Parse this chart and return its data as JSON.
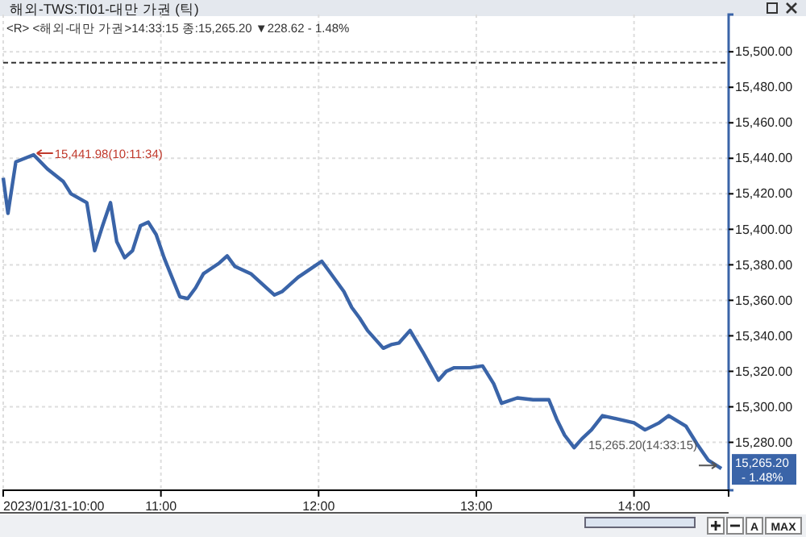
{
  "chart_data": {
    "type": "line",
    "title": "해외-TWS:TI01-대만 가권 (틱)",
    "subtitle": "<R> <해외-대만 가권>14:33:15 종:15,265.20 ▼228.62 - 1.48%",
    "x": [
      10.0,
      10.03,
      10.08,
      10.1928,
      10.28,
      10.38,
      10.43,
      10.53,
      10.58,
      10.63,
      10.68,
      10.72,
      10.77,
      10.82,
      10.87,
      10.92,
      10.97,
      11.02,
      11.07,
      11.12,
      11.17,
      11.22,
      11.27,
      11.37,
      11.42,
      11.47,
      11.57,
      11.67,
      11.72,
      11.77,
      11.87,
      11.97,
      12.02,
      12.07,
      12.16,
      12.21,
      12.26,
      12.31,
      12.36,
      12.41,
      12.46,
      12.51,
      12.58,
      12.66,
      12.71,
      12.76,
      12.81,
      12.86,
      12.96,
      13.04,
      13.11,
      13.16,
      13.26,
      13.36,
      13.46,
      13.51,
      13.56,
      13.62,
      13.67,
      13.73,
      13.8,
      13.9,
      14.0,
      14.07,
      14.16,
      14.22,
      14.33,
      14.4,
      14.47,
      14.554
    ],
    "series": [
      {
        "color": "#3a64a8",
        "values": [
          15429,
          15409,
          15438,
          15441.98,
          15434,
          15427,
          15420,
          15415,
          15388,
          15402,
          15415,
          15393,
          15384,
          15388,
          15402,
          15404,
          15397,
          15384,
          15373,
          15362,
          15361,
          15367,
          15375,
          15381,
          15385,
          15379,
          15375,
          15367,
          15363,
          15365,
          15373,
          15379,
          15382,
          15376,
          15365,
          15356,
          15350,
          15343,
          15338,
          15333,
          15335,
          15336,
          15343,
          15331,
          15323,
          15315,
          15320,
          15322,
          15322,
          15323,
          15313,
          15302,
          15305,
          15304,
          15304,
          15293,
          15284,
          15277,
          15282,
          15287,
          15295,
          15293,
          15291,
          15287,
          15291,
          15295,
          15289,
          15279,
          15270,
          15265.2
        ]
      }
    ],
    "xlim": [
      10,
      14.6
    ],
    "xticks": [
      {
        "value": 10,
        "label": "2023/01/31-10:00"
      },
      {
        "value": 11,
        "label": "11:00"
      },
      {
        "value": 12,
        "label": "12:00"
      },
      {
        "value": 13,
        "label": "13:00"
      },
      {
        "value": 14,
        "label": "14:00"
      }
    ],
    "ylim": [
      15253,
      15521
    ],
    "yticks": [
      {
        "value": 15280,
        "label": "15,280.00"
      },
      {
        "value": 15300,
        "label": "15,300.00"
      },
      {
        "value": 15320,
        "label": "15,320.00"
      },
      {
        "value": 15340,
        "label": "15,340.00"
      },
      {
        "value": 15360,
        "label": "15,360.00"
      },
      {
        "value": 15380,
        "label": "15,380.00"
      },
      {
        "value": 15400,
        "label": "15,400.00"
      },
      {
        "value": 15420,
        "label": "15,420.00"
      },
      {
        "value": 15440,
        "label": "15,440.00"
      },
      {
        "value": 15460,
        "label": "15,460.00"
      },
      {
        "value": 15480,
        "label": "15,480.00"
      },
      {
        "value": 15500,
        "label": "15,500.00"
      }
    ],
    "grid": true,
    "ref_lines": [
      {
        "axis": "y",
        "value": 15493.82,
        "color": "#333333",
        "line_style": "dashed"
      }
    ],
    "annotations": [
      {
        "text": "15,441.98(10:11:34)",
        "x": 10.1928,
        "y": 15441.98
      },
      {
        "text": "15,265.20(14:33:15)",
        "x": 14.554,
        "y": 15265.2
      },
      "15,265.20",
      "- 1.48%",
      "A",
      "MAX"
    ]
  }
}
